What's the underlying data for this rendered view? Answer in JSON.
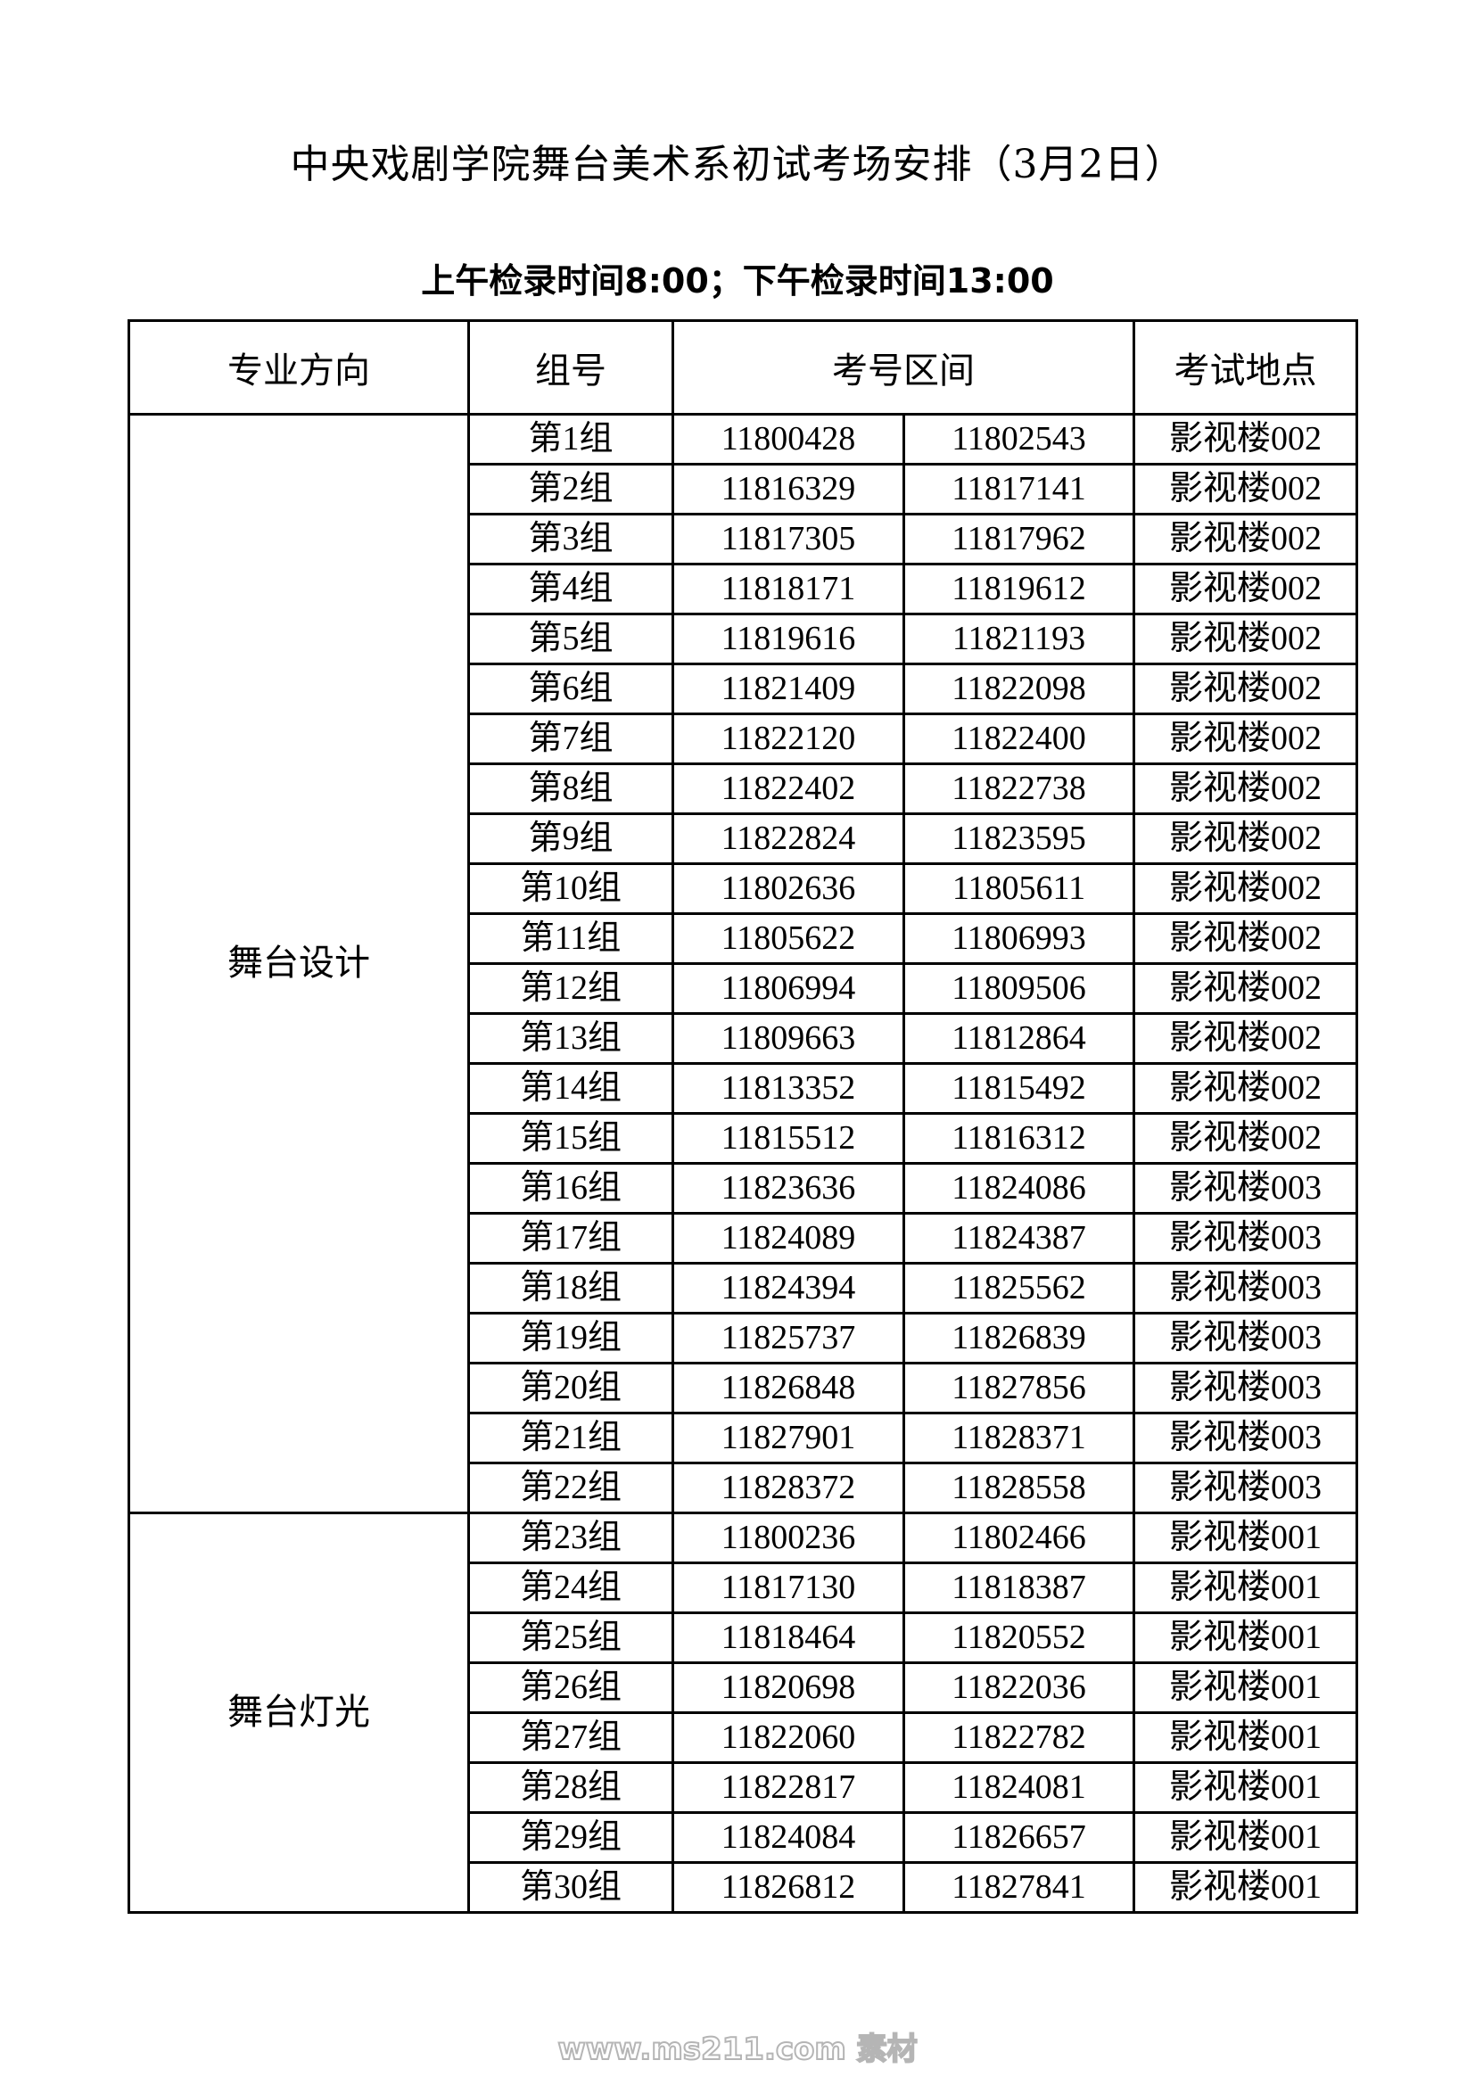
{
  "title": "中央戏剧学院舞台美术系初试考场安排（3月2日）",
  "subtitle": "上午检录时间8:00；下午检录时间13:00",
  "table": {
    "headers": [
      "专业方向",
      "组号",
      "考号区间",
      "考试地点"
    ],
    "groups": [
      {
        "major": "舞台设计",
        "rows": [
          [
            "第1组",
            "11800428",
            "11802543",
            "影视楼002"
          ],
          [
            "第2组",
            "11816329",
            "11817141",
            "影视楼002"
          ],
          [
            "第3组",
            "11817305",
            "11817962",
            "影视楼002"
          ],
          [
            "第4组",
            "11818171",
            "11819612",
            "影视楼002"
          ],
          [
            "第5组",
            "11819616",
            "11821193",
            "影视楼002"
          ],
          [
            "第6组",
            "11821409",
            "11822098",
            "影视楼002"
          ],
          [
            "第7组",
            "11822120",
            "11822400",
            "影视楼002"
          ],
          [
            "第8组",
            "11822402",
            "11822738",
            "影视楼002"
          ],
          [
            "第9组",
            "11822824",
            "11823595",
            "影视楼002"
          ],
          [
            "第10组",
            "11802636",
            "11805611",
            "影视楼002"
          ],
          [
            "第11组",
            "11805622",
            "11806993",
            "影视楼002"
          ],
          [
            "第12组",
            "11806994",
            "11809506",
            "影视楼002"
          ],
          [
            "第13组",
            "11809663",
            "11812864",
            "影视楼002"
          ],
          [
            "第14组",
            "11813352",
            "11815492",
            "影视楼002"
          ],
          [
            "第15组",
            "11815512",
            "11816312",
            "影视楼002"
          ],
          [
            "第16组",
            "11823636",
            "11824086",
            "影视楼003"
          ],
          [
            "第17组",
            "11824089",
            "11824387",
            "影视楼003"
          ],
          [
            "第18组",
            "11824394",
            "11825562",
            "影视楼003"
          ],
          [
            "第19组",
            "11825737",
            "11826839",
            "影视楼003"
          ],
          [
            "第20组",
            "11826848",
            "11827856",
            "影视楼003"
          ],
          [
            "第21组",
            "11827901",
            "11828371",
            "影视楼003"
          ],
          [
            "第22组",
            "11828372",
            "11828558",
            "影视楼003"
          ]
        ]
      },
      {
        "major": "舞台灯光",
        "rows": [
          [
            "第23组",
            "11800236",
            "11802466",
            "影视楼001"
          ],
          [
            "第24组",
            "11817130",
            "11818387",
            "影视楼001"
          ],
          [
            "第25组",
            "11818464",
            "11820552",
            "影视楼001"
          ],
          [
            "第26组",
            "11820698",
            "11822036",
            "影视楼001"
          ],
          [
            "第27组",
            "11822060",
            "11822782",
            "影视楼001"
          ],
          [
            "第28组",
            "11822817",
            "11824081",
            "影视楼001"
          ],
          [
            "第29组",
            "11824084",
            "11826657",
            "影视楼001"
          ],
          [
            "第30组",
            "11826812",
            "11827841",
            "影视楼001"
          ]
        ]
      }
    ]
  },
  "watermark": "www.ms211.com 素材"
}
